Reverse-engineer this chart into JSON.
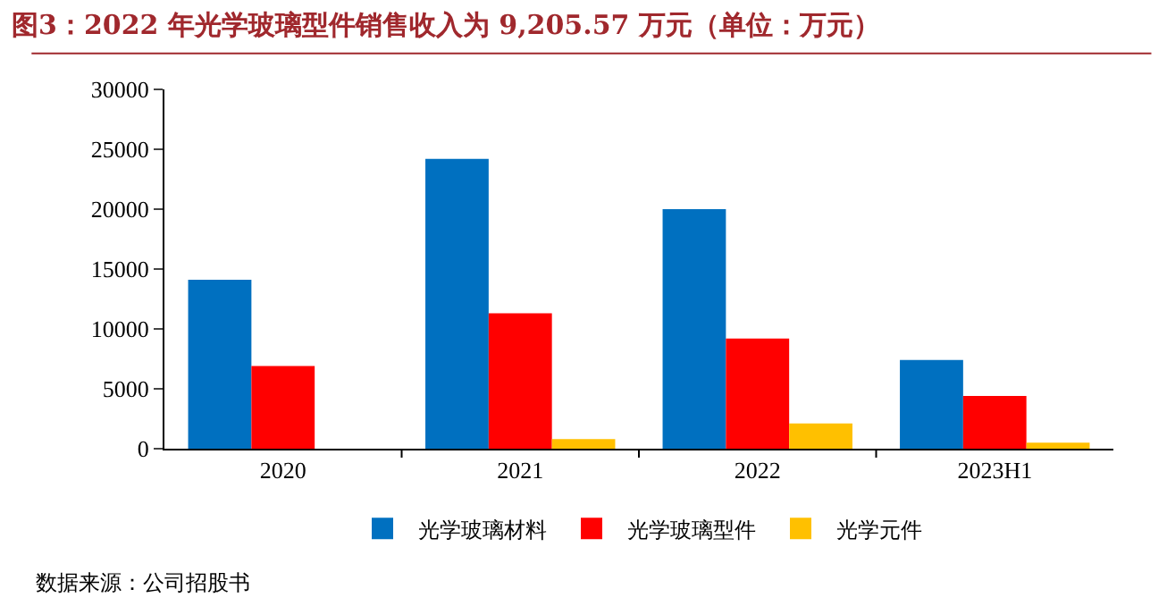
{
  "chart_data": {
    "type": "bar",
    "title": "图3：2022 年光学玻璃型件销售收入为 9,205.57 万元（单位：万元）",
    "categories": [
      "2020",
      "2021",
      "2022",
      "2023H1"
    ],
    "series": [
      {
        "name": "光学玻璃材料",
        "color": "#0070c0",
        "values": [
          14100,
          24200,
          20000,
          7400
        ]
      },
      {
        "name": "光学玻璃型件",
        "color": "#ff0000",
        "values": [
          6900,
          11300,
          9200,
          4400
        ]
      },
      {
        "name": "光学元件",
        "color": "#ffc000",
        "values": [
          null,
          800,
          2100,
          500
        ]
      }
    ],
    "ylim": [
      0,
      30000
    ],
    "yticks": [
      0,
      5000,
      10000,
      15000,
      20000,
      25000,
      30000
    ],
    "legend": "bottom",
    "annotations": [
      "数据来源：公司招股书"
    ]
  }
}
